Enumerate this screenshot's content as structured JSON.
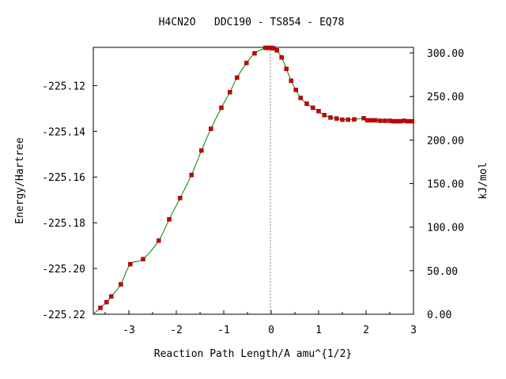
{
  "chart_data": {
    "type": "scatter",
    "title": "H4CN2O   DDC190 - TS854 - EQ78",
    "xlabel": "Reaction Path Length/A amu^{1/2}",
    "ylabel": "Energy/Hartree",
    "y2label": "kJ/mol",
    "xlim": [
      -3.75,
      3.0
    ],
    "ylim": [
      -225.22,
      -225.1033
    ],
    "y2lim": [
      0,
      306.4
    ],
    "x_ticks": [
      "-3",
      "-2",
      "-1",
      "0",
      "1",
      "2",
      "3"
    ],
    "x_tick_values": [
      -3,
      -2,
      -1,
      0,
      1,
      2,
      3
    ],
    "y_ticks": [
      "-225.12",
      "-225.14",
      "-225.16",
      "-225.18",
      "-225.20",
      "-225.22"
    ],
    "y_tick_values": [
      -225.12,
      -225.14,
      -225.16,
      -225.18,
      -225.2,
      -225.22
    ],
    "y2_ticks": [
      "300.00",
      "250.00",
      "200.00",
      "150.00",
      "100.00",
      "50.00",
      "0.00"
    ],
    "y2_tick_values": [
      300,
      250,
      200,
      150,
      100,
      50,
      0
    ],
    "grid": false,
    "colors": {
      "curve": "#008000",
      "points": "#cc0000",
      "ts_line": "#808080",
      "axes": "#000000"
    },
    "series": [
      {
        "x": [
          -3.6,
          -3.47,
          -3.37,
          -3.17,
          -2.97,
          -2.7,
          -2.37,
          -2.15,
          -1.92,
          -1.68,
          -1.47,
          -1.27,
          -1.05,
          -0.87,
          -0.72,
          -0.52,
          -0.35,
          -0.12,
          -0.05,
          0.0,
          0.05,
          0.12,
          0.22,
          0.32,
          0.42,
          0.52,
          0.62,
          0.75,
          0.88,
          1.0,
          1.12,
          1.25,
          1.38,
          1.5,
          1.62,
          1.75,
          1.95,
          2.03,
          2.12,
          2.2,
          2.3,
          2.4,
          2.5,
          2.58,
          2.65,
          2.72,
          2.8,
          2.88,
          2.97
        ],
        "y": [
          -225.2172,
          -225.2147,
          -225.2122,
          -225.2069,
          -225.1981,
          -225.1959,
          -225.1878,
          -225.1785,
          -225.1692,
          -225.1591,
          -225.1484,
          -225.1389,
          -225.1297,
          -225.1229,
          -225.1165,
          -225.1101,
          -225.1059,
          -225.1035,
          -225.1035,
          -225.1035,
          -225.1037,
          -225.1046,
          -225.1077,
          -225.1127,
          -225.1179,
          -225.1219,
          -225.1254,
          -225.1279,
          -225.1297,
          -225.1312,
          -225.1329,
          -225.134,
          -225.1344,
          -225.1349,
          -225.1349,
          -225.1348,
          -225.1343,
          -225.1352,
          -225.1352,
          -225.1352,
          -225.1354,
          -225.1354,
          -225.1354,
          -225.1356,
          -225.1356,
          -225.1356,
          -225.1354,
          -225.1356,
          -225.1356
        ]
      }
    ]
  }
}
